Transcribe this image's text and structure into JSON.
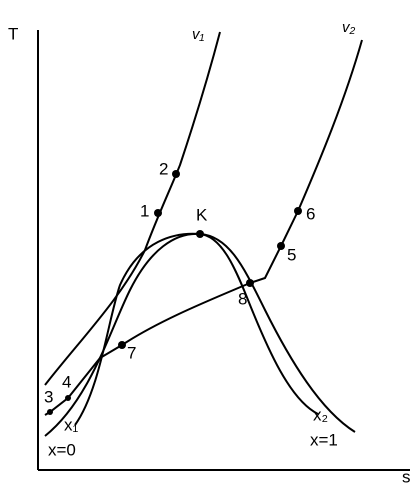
{
  "axes": {
    "y_label": "T",
    "x_label": "s"
  },
  "curves": {
    "v1": "v₁",
    "v2": "v₂",
    "x1": "x₁",
    "x2": "x₂",
    "x0": "x=0",
    "xone": "x=1"
  },
  "critical_point": "K",
  "points": [
    "1",
    "2",
    "3",
    "4",
    "5",
    "6",
    "7",
    "8"
  ]
}
